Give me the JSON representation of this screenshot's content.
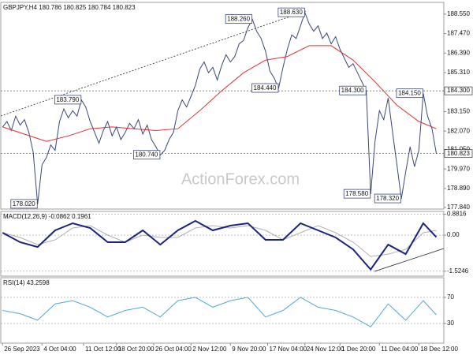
{
  "watermark": "ActionForex.com",
  "chart_data": [
    {
      "type": "line",
      "title": "GBPJPY,H4  180.786 180.825 180.784 180.823",
      "xlim": [
        -0.4,
        100.7
      ],
      "ylim": [
        177.75,
        189.2
      ],
      "grid": false,
      "yticks": [
        {
          "value": 188.55,
          "label": "188.550"
        },
        {
          "value": 187.47,
          "label": "187.470"
        },
        {
          "value": 186.39,
          "label": "186.390"
        },
        {
          "value": 185.31,
          "label": "185.310"
        },
        {
          "value": 183.15,
          "label": "183.150"
        },
        {
          "value": 182.07,
          "label": "182.070"
        },
        {
          "value": 181.05,
          "label": "181.050"
        },
        {
          "value": 179.97,
          "label": "179.970"
        },
        {
          "value": 178.89,
          "label": "178.890"
        },
        {
          "value": 177.84,
          "label": "177.840"
        }
      ],
      "hlines": [
        {
          "value": 184.3,
          "label": "184.300"
        },
        {
          "value": 180.823,
          "label": "180.823"
        }
      ],
      "series": [
        {
          "color": "#3a4778",
          "values": [
            182.3,
            182.6,
            182.1,
            182.9,
            182.4,
            182.7,
            182.0,
            180.9,
            178.02,
            180.2,
            180.6,
            181.3,
            181.0,
            182.6,
            183.3,
            182.8,
            183.2,
            182.9,
            183.79,
            183.4,
            182.6,
            182.0,
            181.4,
            182.1,
            182.6,
            181.8,
            182.3,
            181.6,
            182.0,
            182.5,
            182.2,
            182.7,
            181.9,
            182.4,
            181.6,
            181.2,
            180.74,
            181.0,
            181.6,
            182.0,
            183.2,
            183.8,
            183.4,
            184.0,
            184.6,
            185.5,
            185.9,
            185.3,
            185.6,
            184.9,
            185.7,
            186.3,
            185.9,
            186.2,
            186.9,
            187.1,
            187.8,
            188.26,
            187.6,
            187.2,
            186.5,
            185.4,
            185.0,
            184.44,
            185.6,
            186.6,
            187.4,
            187.2,
            187.9,
            188.63,
            188.0,
            187.6,
            187.9,
            187.2,
            187.5,
            186.9,
            187.3,
            186.6,
            186.1,
            185.6,
            185.8,
            185.3,
            184.8,
            184.3,
            178.58,
            181.5,
            183.2,
            182.7,
            183.9,
            182.0,
            180.2,
            178.32,
            179.8,
            181.2,
            180.1,
            181.0,
            184.15,
            182.9,
            182.2,
            180.823
          ]
        },
        {
          "color": "#e03030",
          "x": [
            0,
            5,
            10,
            15,
            20,
            25,
            30,
            35,
            40,
            45,
            50,
            55,
            60,
            65,
            70,
            75,
            80,
            85,
            90,
            95,
            99
          ],
          "values": [
            182.3,
            181.9,
            181.5,
            181.8,
            182.2,
            182.3,
            182.2,
            182.1,
            182.2,
            183.2,
            184.3,
            185.3,
            186.0,
            186.2,
            186.8,
            186.8,
            186.0,
            184.8,
            183.5,
            182.6,
            182.2
          ]
        }
      ],
      "annotations": [
        {
          "x": 18,
          "y": 183.79,
          "label": "183.790"
        },
        {
          "x": 57,
          "y": 188.26,
          "label": "188.260"
        },
        {
          "x": 69,
          "y": 188.63,
          "label": "188.630"
        },
        {
          "x": 63,
          "y": 184.44,
          "label": "184.440"
        },
        {
          "x": 83,
          "y": 184.3,
          "label": "184.300"
        },
        {
          "x": 96,
          "y": 184.15,
          "label": "184.150"
        },
        {
          "x": 36,
          "y": 180.74,
          "label": "180.740"
        },
        {
          "x": 8,
          "y": 178.02,
          "label": "178.020"
        },
        {
          "x": 84,
          "y": 178.58,
          "label": "178.580"
        },
        {
          "x": 91,
          "y": 178.32,
          "label": "178.320"
        }
      ]
    },
    {
      "type": "line",
      "title": "MACD(12,26,9) -0.0862 0.1961",
      "xlim": [
        -0.4,
        100.7
      ],
      "ylim": [
        -1.73,
        1.0
      ],
      "grid": true,
      "yticks": [
        0.8816,
        {
          "value": 0,
          "label": "0.00"
        },
        -1.5246
      ],
      "series": [
        {
          "color": "#b0b0b0",
          "x": [
            0,
            4,
            8,
            12,
            16,
            20,
            24,
            28,
            32,
            36,
            40,
            44,
            48,
            52,
            56,
            60,
            64,
            68,
            72,
            76,
            80,
            84,
            88,
            92,
            96,
            99
          ],
          "values": [
            0.1,
            -0.1,
            -0.4,
            -0.2,
            0.3,
            0.4,
            0,
            -0.3,
            0,
            -0.1,
            -0.1,
            0.3,
            0.4,
            0.3,
            0.4,
            0.2,
            -0.2,
            0.1,
            0.4,
            0.1,
            -0.3,
            -0.9,
            -0.8,
            -0.6,
            0.1,
            0.1961
          ]
        },
        {
          "color": "#1a237e",
          "x": [
            0,
            4,
            8,
            12,
            16,
            20,
            24,
            28,
            32,
            36,
            40,
            44,
            48,
            52,
            56,
            60,
            64,
            68,
            72,
            76,
            80,
            84,
            88,
            92,
            96,
            99
          ],
          "values": [
            0.1,
            -0.3,
            -0.5,
            0.2,
            0.5,
            0.3,
            -0.3,
            -0.3,
            0.2,
            -0.4,
            0.2,
            0.6,
            0.2,
            0.4,
            0.5,
            -0.2,
            -0.2,
            0.5,
            0.2,
            -0.1,
            -0.6,
            -1.45,
            -0.4,
            -0.8,
            0.5,
            -0.0862
          ]
        }
      ]
    },
    {
      "type": "line",
      "title": "RSI(14) 43.2598",
      "xlim": [
        -0.4,
        100.7
      ],
      "ylim": [
        0,
        100
      ],
      "grid": true,
      "yticks": [
        70,
        30
      ],
      "xticks": [
        {
          "value": 0,
          "label": "26 Sep 2023"
        },
        {
          "value": 9,
          "label": "4 Oct 04:00"
        },
        {
          "value": 18.5,
          "label": "11 Oct 12:00"
        },
        {
          "value": 26,
          "label": "18 Oct 20:00"
        },
        {
          "value": 34.5,
          "label": "26 Oct 04:00"
        },
        {
          "value": 43,
          "label": "2 Nov 12:00"
        },
        {
          "value": 52,
          "label": "9 Nov 20:00"
        },
        {
          "value": 60.5,
          "label": "17 Nov 04:00"
        },
        {
          "value": 69,
          "label": "24 Nov 12:00"
        },
        {
          "value": 77,
          "label": "1 Dec 20:00"
        },
        {
          "value": 86,
          "label": "11 Dec 04:00"
        },
        {
          "value": 95,
          "label": "18 Dec 12:00"
        }
      ],
      "series": [
        {
          "color": "#4fa8dc",
          "x": [
            0,
            4,
            8,
            12,
            16,
            20,
            24,
            28,
            32,
            36,
            40,
            44,
            48,
            52,
            56,
            60,
            64,
            68,
            72,
            76,
            80,
            84,
            88,
            92,
            96,
            99
          ],
          "values": [
            50,
            45,
            35,
            60,
            65,
            55,
            40,
            50,
            55,
            40,
            65,
            70,
            55,
            65,
            70,
            40,
            50,
            70,
            55,
            50,
            40,
            25,
            60,
            35,
            65,
            43.2598
          ]
        }
      ]
    }
  ]
}
